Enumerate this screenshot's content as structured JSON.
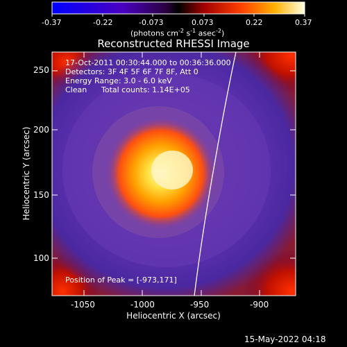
{
  "colorbar": {
    "tick_labels": [
      "-0.37",
      "-0.22",
      "-0.073",
      "0.073",
      "0.22",
      "0.37"
    ],
    "unit_main": "(photons cm",
    "unit_exp1": "-2",
    "unit_s": " s",
    "unit_exp2": "-1",
    "unit_asec": " asec",
    "unit_exp3": "-2",
    "unit_close": ")"
  },
  "title": "Reconstructed RHESSI Image",
  "annotations": {
    "line1": "17-Oct-2011 00:30:44.000 to 00:36:36.000",
    "line2": "Detectors: 3F 4F 5F 6F 7F 8F, Att 0",
    "line3": "Energy Range: 3.0 - 6.0 keV",
    "line4_a": "Clean",
    "line4_b": "Total counts: 1.14E+05",
    "peak": "Position of Peak = [-973,171]"
  },
  "axes": {
    "xlabel": "Heliocentric X (arcsec)",
    "ylabel": "Heliocentric Y (arcsec)",
    "x_ticks": [
      "-1050",
      "-1000",
      "-950",
      "-900"
    ],
    "y_ticks": [
      "250",
      "200",
      "150",
      "100"
    ]
  },
  "footer": {
    "timestamp": "15-May-2022 04:18"
  }
}
